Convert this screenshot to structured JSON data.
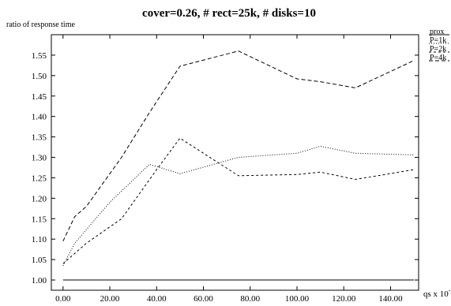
{
  "chart_data": {
    "type": "line",
    "title": "cover=0.26, # rect=25k, # disks=10",
    "ylabel": "ratio of response time",
    "xlabel": "qs x 10",
    "xlabel_exponent": "-3",
    "xlim": [
      -5,
      152
    ],
    "ylim": [
      0.975,
      1.6
    ],
    "xticks": [
      "0.00",
      "20.00",
      "40.00",
      "60.00",
      "80.00",
      "100.00",
      "120.00",
      "140.00"
    ],
    "xtick_values": [
      0,
      20,
      40,
      60,
      80,
      100,
      120,
      140
    ],
    "yticks": [
      "1.00",
      "1.05",
      "1.10",
      "1.15",
      "1.20",
      "1.25",
      "1.30",
      "1.35",
      "1.40",
      "1.45",
      "1.50",
      "1.55"
    ],
    "ytick_values": [
      1.0,
      1.05,
      1.1,
      1.15,
      1.2,
      1.25,
      1.3,
      1.35,
      1.4,
      1.45,
      1.5,
      1.55
    ],
    "grid": false,
    "legend_position": "top-right",
    "series": [
      {
        "name": "prox",
        "style": "solid",
        "x": [
          0,
          150
        ],
        "y": [
          1.0,
          1.0
        ]
      },
      {
        "name": "P=1k",
        "style": "dotted",
        "x": [
          0,
          5,
          20,
          37,
          50,
          75,
          100,
          110,
          125,
          150
        ],
        "y": [
          1.035,
          1.09,
          1.19,
          1.283,
          1.26,
          1.3,
          1.31,
          1.327,
          1.31,
          1.306
        ]
      },
      {
        "name": "P=2k",
        "style": "dashed",
        "x": [
          0,
          10,
          25,
          40,
          50,
          75,
          100,
          110,
          125,
          150
        ],
        "y": [
          1.04,
          1.09,
          1.15,
          1.27,
          1.347,
          1.255,
          1.258,
          1.264,
          1.246,
          1.27
        ]
      },
      {
        "name": "P=4k",
        "style": "longdash",
        "x": [
          0,
          5,
          10,
          25,
          37,
          50,
          75,
          100,
          110,
          125,
          150
        ],
        "y": [
          1.095,
          1.155,
          1.18,
          1.3,
          1.41,
          1.523,
          1.56,
          1.492,
          1.485,
          1.47,
          1.537
        ]
      }
    ]
  }
}
